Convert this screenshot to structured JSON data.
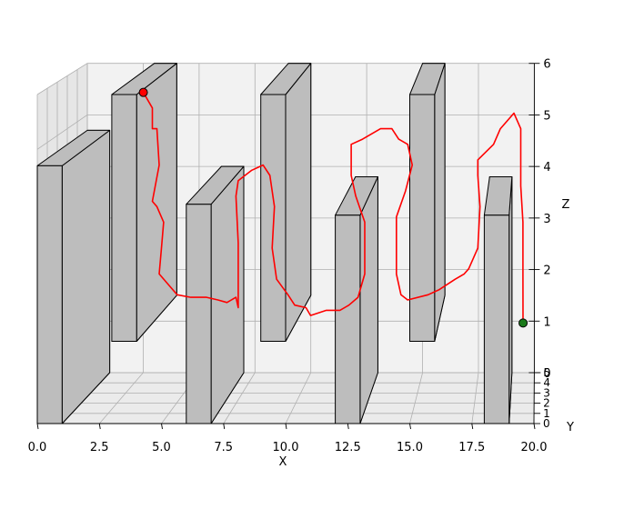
{
  "chart_data": {
    "type": "3d-path",
    "title": "",
    "xlabel": "X",
    "ylabel": "Y",
    "zlabel": "Z",
    "xlim": [
      0,
      20
    ],
    "ylim": [
      0,
      5
    ],
    "zlim": [
      0,
      6
    ],
    "x_ticks": [
      "0.0",
      "2.5",
      "5.0",
      "7.5",
      "10.0",
      "12.5",
      "15.0",
      "17.5",
      "20.0"
    ],
    "y_ticks": [
      "0",
      "1",
      "2",
      "3",
      "4",
      "5"
    ],
    "z_ticks": [
      "0",
      "1",
      "2",
      "3",
      "4",
      "5",
      "6"
    ],
    "grid": true,
    "obstacles": [
      {
        "x": [
          0,
          1
        ],
        "y": [
          0,
          5
        ],
        "z": [
          0,
          4.7
        ]
      },
      {
        "x": [
          3,
          4
        ],
        "y": [
          0,
          5
        ],
        "z": [
          1.5,
          6
        ]
      },
      {
        "x": [
          6,
          7
        ],
        "y": [
          0,
          5
        ],
        "z": [
          0,
          4
        ]
      },
      {
        "x": [
          9,
          10
        ],
        "y": [
          0,
          5
        ],
        "z": [
          1.5,
          6
        ]
      },
      {
        "x": [
          12,
          13
        ],
        "y": [
          0,
          5
        ],
        "z": [
          0,
          3.8
        ]
      },
      {
        "x": [
          15,
          16
        ],
        "y": [
          0,
          5
        ],
        "z": [
          1.5,
          6
        ]
      },
      {
        "x": [
          18,
          19
        ],
        "y": [
          0,
          5
        ],
        "z": [
          0,
          3.8
        ]
      }
    ],
    "path_color": "#ff0000",
    "start_point": {
      "x": 2.7,
      "y": 4.5,
      "z": 5.5,
      "color": "#ff0000"
    },
    "goal_point": {
      "x": 19.5,
      "y": 4.8,
      "z": 1.0,
      "color": "#1a7a1a"
    },
    "path": [
      [
        2.7,
        4.5,
        5.5
      ],
      [
        3.1,
        4.5,
        5.2
      ],
      [
        3.1,
        4.5,
        4.8
      ],
      [
        3.3,
        4.5,
        4.8
      ],
      [
        3.4,
        4.5,
        4.1
      ],
      [
        3.1,
        4.5,
        3.4
      ],
      [
        3.3,
        4.5,
        3.3
      ],
      [
        3.6,
        4.5,
        3.0
      ],
      [
        3.5,
        4.5,
        2.5
      ],
      [
        3.4,
        4.5,
        2.0
      ],
      [
        3.8,
        4.5,
        1.8
      ],
      [
        4.2,
        4.5,
        1.6
      ],
      [
        4.8,
        4.5,
        1.55
      ],
      [
        5.5,
        4.5,
        1.55
      ],
      [
        6.0,
        4.5,
        1.5
      ],
      [
        6.4,
        4.5,
        1.45
      ],
      [
        6.8,
        4.5,
        1.55
      ],
      [
        6.9,
        4.5,
        1.35
      ],
      [
        6.9,
        4.5,
        2.6
      ],
      [
        6.8,
        4.5,
        3.5
      ],
      [
        6.9,
        4.5,
        3.8
      ],
      [
        7.5,
        4.5,
        4.0
      ],
      [
        8.0,
        4.5,
        4.1
      ],
      [
        8.3,
        4.5,
        3.9
      ],
      [
        8.5,
        4.5,
        3.3
      ],
      [
        8.4,
        4.5,
        2.5
      ],
      [
        8.6,
        4.5,
        1.9
      ],
      [
        9.1,
        4.5,
        1.6
      ],
      [
        9.4,
        4.5,
        1.4
      ],
      [
        9.9,
        4.5,
        1.35
      ],
      [
        10.1,
        4.5,
        1.2
      ],
      [
        10.8,
        4.5,
        1.3
      ],
      [
        11.4,
        4.5,
        1.3
      ],
      [
        11.8,
        4.5,
        1.4
      ],
      [
        12.2,
        4.5,
        1.55
      ],
      [
        12.5,
        4.5,
        2.0
      ],
      [
        12.5,
        4.5,
        3.0
      ],
      [
        12.1,
        4.5,
        3.5
      ],
      [
        11.9,
        4.5,
        3.9
      ],
      [
        11.9,
        4.5,
        4.5
      ],
      [
        12.4,
        4.5,
        4.6
      ],
      [
        13.2,
        4.5,
        4.8
      ],
      [
        13.7,
        4.5,
        4.8
      ],
      [
        14.0,
        4.5,
        4.6
      ],
      [
        14.4,
        4.5,
        4.5
      ],
      [
        14.6,
        4.5,
        4.1
      ],
      [
        14.3,
        4.5,
        3.6
      ],
      [
        13.9,
        4.5,
        3.1
      ],
      [
        13.9,
        4.5,
        2.0
      ],
      [
        14.1,
        4.5,
        1.6
      ],
      [
        14.4,
        4.5,
        1.5
      ],
      [
        15.3,
        4.5,
        1.6
      ],
      [
        15.8,
        4.5,
        1.7
      ],
      [
        16.5,
        4.5,
        1.9
      ],
      [
        16.9,
        4.5,
        2.0
      ],
      [
        17.1,
        4.5,
        2.1
      ],
      [
        17.5,
        4.5,
        2.5
      ],
      [
        17.6,
        4.5,
        3.3
      ],
      [
        17.5,
        4.5,
        3.9
      ],
      [
        17.5,
        4.5,
        4.2
      ],
      [
        18.2,
        4.5,
        4.5
      ],
      [
        18.5,
        4.5,
        4.8
      ],
      [
        19.1,
        4.5,
        5.1
      ],
      [
        19.4,
        4.5,
        4.8
      ],
      [
        19.4,
        4.5,
        3.7
      ],
      [
        19.5,
        4.5,
        3.0
      ],
      [
        19.5,
        4.5,
        2.0
      ],
      [
        19.5,
        4.8,
        1.0
      ]
    ]
  }
}
